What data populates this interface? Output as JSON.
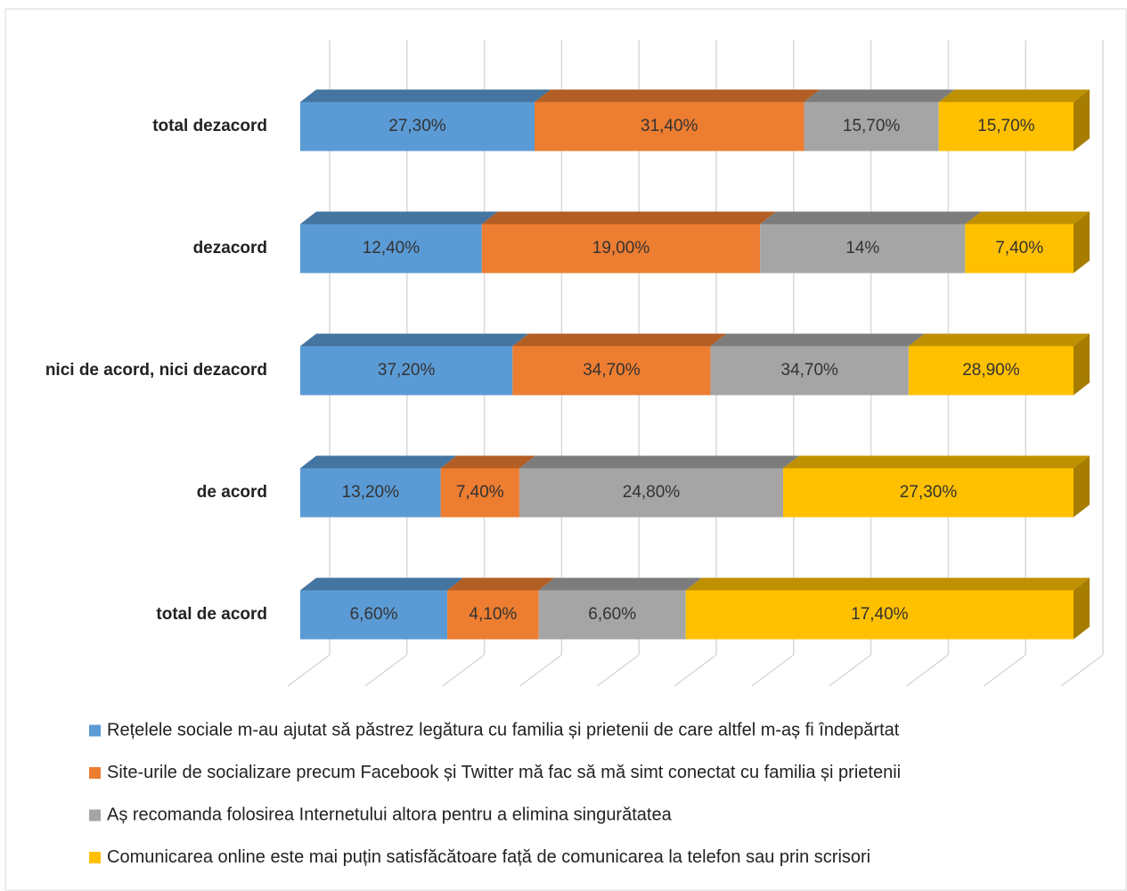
{
  "chart_data": {
    "type": "bar",
    "orientation": "horizontal",
    "stack": "percent",
    "three_d": true,
    "grid": true,
    "categories": [
      "total dezacord",
      "dezacord",
      "nici de acord, nici dezacord",
      "de acord",
      "total de acord"
    ],
    "xlim": [
      0,
      100
    ],
    "xticks": [
      0,
      10,
      20,
      30,
      40,
      50,
      60,
      70,
      80,
      90,
      100
    ],
    "series": [
      {
        "name": "Rețelele sociale m-au ajutat să păstrez legătura cu familia și prietenii de care altfel m-aș fi îndepărtat",
        "color": "#5b9bd5",
        "values": [
          27.3,
          12.4,
          37.2,
          13.2,
          6.6
        ],
        "value_labels": [
          "27,30%",
          "12,40%",
          "37,20%",
          "13,20%",
          "6,60%"
        ]
      },
      {
        "name": "Site-urile de socializare precum Facebook și Twitter mă fac să mă simt conectat cu familia și prietenii",
        "color": "#ed7d31",
        "values": [
          31.4,
          19.0,
          34.7,
          7.4,
          4.1
        ],
        "value_labels": [
          "31,40%",
          "19,00%",
          "34,70%",
          "7,40%",
          "4,10%"
        ]
      },
      {
        "name": "Aș recomanda folosirea Internetului altora pentru a elimina singurătatea",
        "color": "#a5a5a5",
        "values": [
          15.7,
          14,
          34.7,
          24.8,
          6.6
        ],
        "value_labels": [
          "15,70%",
          "14%",
          "34,70%",
          "24,80%",
          "6,60%"
        ]
      },
      {
        "name": "Comunicarea online este mai puțin satisfăcătoare față de comunicarea la telefon sau prin scrisori",
        "color": "#ffc000",
        "values": [
          15.7,
          7.4,
          28.9,
          27.3,
          17.4
        ],
        "value_labels": [
          "15,70%",
          "7,40%",
          "28,90%",
          "27,30%",
          "17,40%"
        ]
      }
    ]
  }
}
